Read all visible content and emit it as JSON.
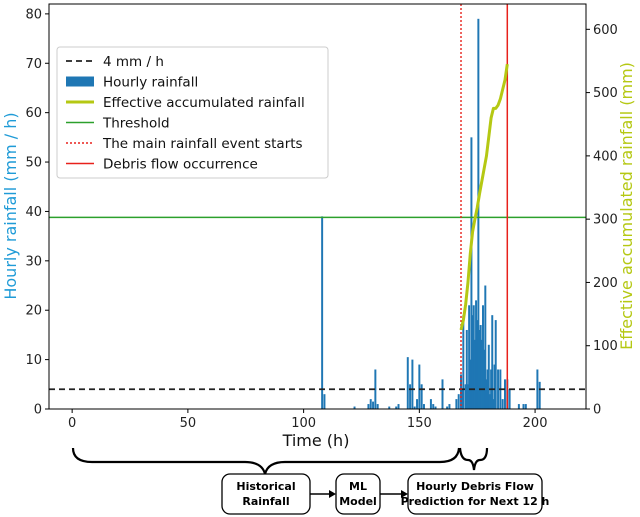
{
  "chart_data": {
    "type": "bar+line",
    "xlabel": "Time (h)",
    "ylabel_left": "Hourly rainfall (mm / h)",
    "ylabel_right": "Effective accumulated rainfall (mm)",
    "xlim": [
      -10,
      222
    ],
    "ylim_left": [
      0,
      82
    ],
    "ylim_right": [
      0,
      640
    ],
    "xticks": [
      0,
      50,
      100,
      150,
      200
    ],
    "yticks_left": [
      0,
      10,
      20,
      30,
      40,
      50,
      60,
      70,
      80
    ],
    "yticks_right": [
      0,
      100,
      200,
      300,
      400,
      500,
      600
    ],
    "colors": {
      "bars": "#1f77b4",
      "left_axis_label": "#1f9bd7",
      "effective": "#b5c813",
      "right_axis_label": "#b5c813",
      "threshold": "#2ca02c",
      "start_line": "#e8211b",
      "debris_line": "#e8211b",
      "ref_line": "#222222"
    },
    "series": [
      {
        "name": "Hourly rainfall",
        "type": "bar",
        "axis": "left",
        "x": [
          108,
          109,
          122,
          128,
          129,
          130,
          131,
          132,
          137,
          140,
          141,
          145,
          146,
          147,
          148,
          149,
          150,
          151,
          152,
          155,
          156,
          157,
          160,
          162,
          163,
          166,
          167,
          168,
          168.5,
          169,
          170,
          170.5,
          171,
          171.5,
          172,
          172.5,
          173,
          173.5,
          174,
          174.5,
          175,
          175.5,
          176,
          176.5,
          177,
          177.5,
          178,
          178.5,
          179,
          179.5,
          180,
          180.5,
          181,
          181.5,
          182,
          182.5,
          183,
          184,
          185,
          186,
          187,
          188,
          189,
          193,
          195,
          196,
          201,
          202
        ],
        "values": [
          39,
          3,
          0.5,
          1,
          2,
          1.5,
          8,
          1,
          0.5,
          0.5,
          1,
          10.5,
          5,
          10,
          0.5,
          2,
          9,
          5,
          1,
          2,
          1,
          0.5,
          6,
          0.5,
          1,
          2,
          3,
          7,
          4,
          19,
          5,
          16,
          5,
          21,
          10,
          55,
          19,
          21,
          14,
          22,
          18,
          79,
          16,
          17,
          14,
          21,
          12,
          25,
          6,
          8,
          13,
          3,
          8,
          19,
          2,
          9,
          18,
          8,
          8,
          2,
          6,
          6,
          4,
          1,
          1,
          1,
          8,
          5.5
        ]
      },
      {
        "name": "Effective accumulated rainfall",
        "type": "line",
        "axis": "right",
        "x": [
          168,
          169,
          170,
          171,
          172,
          173,
          174,
          175,
          176,
          177,
          178,
          179,
          180,
          181,
          182,
          183,
          184,
          185,
          186,
          187,
          188
        ],
        "values": [
          125,
          140,
          165,
          200,
          245,
          280,
          300,
          318,
          340,
          360,
          380,
          400,
          430,
          460,
          475,
          475,
          480,
          490,
          505,
          520,
          545
        ]
      }
    ],
    "reference_lines": [
      {
        "name": "4 mm / h",
        "orientation": "horizontal",
        "axis": "left",
        "value": 4,
        "style": "dashed"
      },
      {
        "name": "Threshold",
        "orientation": "horizontal",
        "axis": "left",
        "value": 38.8,
        "style": "solid"
      },
      {
        "name": "The main rainfall event starts",
        "orientation": "vertical",
        "value": 168,
        "style": "dotted"
      },
      {
        "name": "Debris flow occurrence",
        "orientation": "vertical",
        "value": 188,
        "style": "solid"
      }
    ],
    "legend": {
      "placement": "upper-left",
      "entries": [
        "4 mm / h",
        "Hourly rainfall",
        "Effective accumulated rainfall",
        "Threshold",
        "The main rainfall event starts",
        "Debris flow occurrence"
      ]
    }
  },
  "flow": {
    "box1": [
      "Historical",
      "Rainfall"
    ],
    "box2": [
      "ML",
      "Model"
    ],
    "box3": [
      "Hourly Debris Flow",
      "Prediction for Next 12 h"
    ]
  }
}
